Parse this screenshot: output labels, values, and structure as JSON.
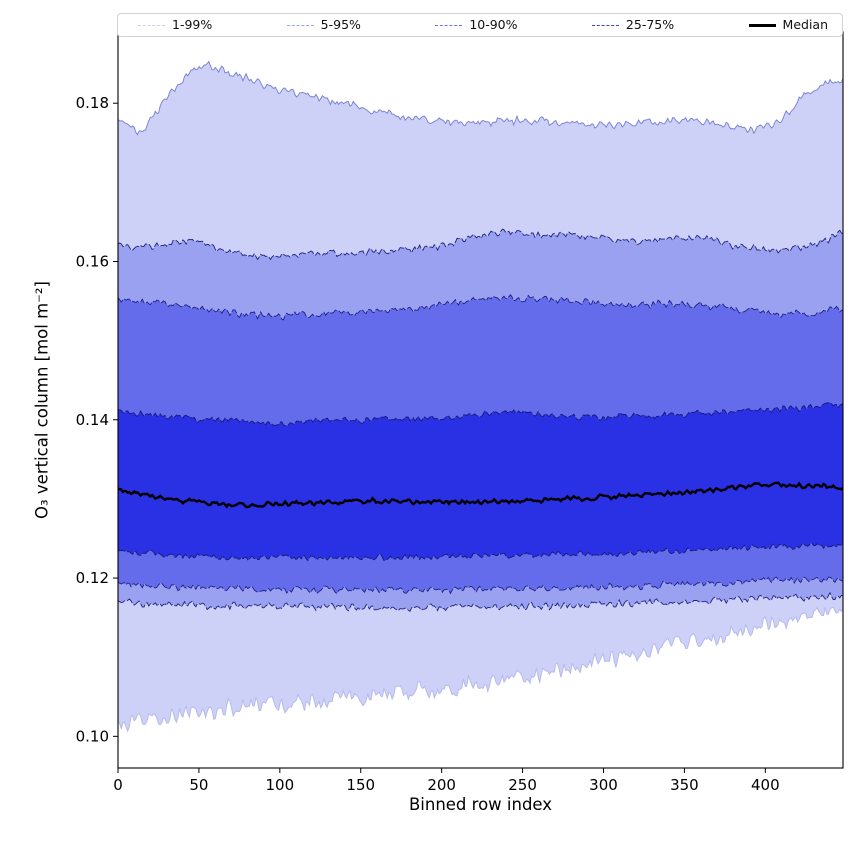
{
  "figure": {
    "background": "#ffffff"
  },
  "chart_data": {
    "type": "area",
    "title": "",
    "xlabel": "Binned row index",
    "ylabel": "O₃ vertical column [mol m⁻²]",
    "xlim": [
      0,
      448
    ],
    "ylim": [
      0.096,
      0.189
    ],
    "grid": false,
    "legend_position": "top-expand",
    "xticks": [
      0,
      50,
      100,
      150,
      200,
      250,
      300,
      350,
      400
    ],
    "xtick_labels": [
      "0",
      "50",
      "100",
      "150",
      "200",
      "250",
      "300",
      "350",
      "400"
    ],
    "yticks": [
      0.1,
      0.12,
      0.14,
      0.16,
      0.18
    ],
    "ytick_labels": [
      "0.10",
      "0.12",
      "0.14",
      "0.16",
      "0.18"
    ],
    "n_points": 448,
    "control_x": [
      0,
      8,
      15,
      25,
      35,
      45,
      55,
      70,
      85,
      100,
      115,
      130,
      145,
      160,
      180,
      200,
      220,
      240,
      260,
      280,
      300,
      320,
      340,
      360,
      380,
      395,
      410,
      425,
      435,
      447
    ],
    "series": {
      "p1": [
        0.1012,
        0.1015,
        0.1018,
        0.1022,
        0.1028,
        0.103,
        0.1032,
        0.1035,
        0.1038,
        0.104,
        0.1043,
        0.1045,
        0.1048,
        0.1052,
        0.1056,
        0.106,
        0.1066,
        0.1072,
        0.1078,
        0.1084,
        0.1095,
        0.1105,
        0.1115,
        0.1122,
        0.113,
        0.1138,
        0.1145,
        0.1152,
        0.1156,
        0.1158
      ],
      "p5": [
        0.117,
        0.1169,
        0.1168,
        0.1167,
        0.1166,
        0.1166,
        0.1165,
        0.1165,
        0.1164,
        0.1164,
        0.1164,
        0.1164,
        0.1163,
        0.1163,
        0.1163,
        0.1163,
        0.1164,
        0.1164,
        0.1165,
        0.1166,
        0.1167,
        0.1168,
        0.117,
        0.1171,
        0.1173,
        0.1174,
        0.1175,
        0.1176,
        0.1177,
        0.1178
      ],
      "p10": [
        0.1194,
        0.1192,
        0.1191,
        0.119,
        0.1189,
        0.1188,
        0.1188,
        0.1187,
        0.1186,
        0.1186,
        0.1186,
        0.1185,
        0.1185,
        0.1185,
        0.1185,
        0.1185,
        0.1186,
        0.1186,
        0.1187,
        0.1188,
        0.1189,
        0.119,
        0.1192,
        0.1193,
        0.1195,
        0.1196,
        0.1197,
        0.1198,
        0.1198,
        0.1199
      ],
      "p25": [
        0.1236,
        0.1234,
        0.1232,
        0.123,
        0.1229,
        0.1228,
        0.1227,
        0.1226,
        0.1226,
        0.1226,
        0.1226,
        0.1226,
        0.1226,
        0.1226,
        0.1226,
        0.1227,
        0.1228,
        0.1229,
        0.1229,
        0.123,
        0.1231,
        0.1232,
        0.1234,
        0.1236,
        0.1238,
        0.1239,
        0.124,
        0.1241,
        0.1242,
        0.1242
      ],
      "median": [
        0.1312,
        0.1308,
        0.1305,
        0.1302,
        0.1299,
        0.1297,
        0.1295,
        0.1293,
        0.1292,
        0.1294,
        0.1295,
        0.1295,
        0.1297,
        0.1298,
        0.1296,
        0.1297,
        0.1296,
        0.1297,
        0.1298,
        0.13,
        0.1302,
        0.1304,
        0.1307,
        0.131,
        0.1314,
        0.1317,
        0.1318,
        0.1317,
        0.1316,
        0.1314
      ],
      "p75": [
        0.1413,
        0.141,
        0.1408,
        0.1405,
        0.1403,
        0.1401,
        0.14,
        0.1399,
        0.1397,
        0.1396,
        0.1397,
        0.1399,
        0.14,
        0.14,
        0.14,
        0.1403,
        0.1407,
        0.141,
        0.1407,
        0.1405,
        0.1403,
        0.1405,
        0.1406,
        0.1408,
        0.141,
        0.1412,
        0.1413,
        0.1415,
        0.1417,
        0.142
      ],
      "p90": [
        0.1553,
        0.155,
        0.1548,
        0.1548,
        0.1546,
        0.1543,
        0.154,
        0.1536,
        0.1532,
        0.153,
        0.1532,
        0.1535,
        0.1535,
        0.1537,
        0.154,
        0.1545,
        0.1552,
        0.1555,
        0.1553,
        0.155,
        0.1546,
        0.1546,
        0.1546,
        0.1545,
        0.154,
        0.1536,
        0.1533,
        0.1535,
        0.1538,
        0.154
      ],
      "p95": [
        0.162,
        0.1618,
        0.1617,
        0.162,
        0.1624,
        0.1626,
        0.162,
        0.1612,
        0.1607,
        0.1605,
        0.1608,
        0.161,
        0.161,
        0.1612,
        0.1615,
        0.162,
        0.1632,
        0.1638,
        0.1633,
        0.1635,
        0.163,
        0.1625,
        0.1628,
        0.163,
        0.162,
        0.1616,
        0.1613,
        0.1618,
        0.1625,
        0.1636
      ],
      "p99": [
        0.1778,
        0.1768,
        0.1763,
        0.179,
        0.182,
        0.1843,
        0.1848,
        0.1838,
        0.1828,
        0.1818,
        0.181,
        0.1803,
        0.1797,
        0.179,
        0.1781,
        0.1777,
        0.1776,
        0.1778,
        0.1778,
        0.1776,
        0.1773,
        0.1773,
        0.1776,
        0.1778,
        0.177,
        0.1766,
        0.178,
        0.1812,
        0.1824,
        0.1828
      ]
    },
    "jitter": {
      "p1": 0.001,
      "p5": 0.0004,
      "p10": 0.0004,
      "p25": 0.00035,
      "median": 0.00028,
      "p75": 0.00035,
      "p90": 0.0004,
      "p95": 0.0004,
      "p99": 0.0005
    },
    "bands": [
      {
        "label": "1-99%",
        "lower": "p1",
        "upper": "p99",
        "fill": "#cdd1f8"
      },
      {
        "label": "5-95%",
        "lower": "p5",
        "upper": "p95",
        "fill": "#9aa1f1"
      },
      {
        "label": "10-90%",
        "lower": "p10",
        "upper": "p90",
        "fill": "#646ceb"
      },
      {
        "label": "25-75%",
        "lower": "p25",
        "upper": "p75",
        "fill": "#2a30e3"
      }
    ],
    "edges": [
      {
        "series": "p1",
        "color": "#b6baea",
        "width": 1.0,
        "dash": ""
      },
      {
        "series": "p99",
        "color": "#7d85d2",
        "width": 1.0,
        "dash": ""
      },
      {
        "series": "p5",
        "color": "#1c2280",
        "width": 0.9,
        "dash": "8 2"
      },
      {
        "series": "p95",
        "color": "#1c2280",
        "width": 0.9,
        "dash": "8 2"
      },
      {
        "series": "p10",
        "color": "#1c2280",
        "width": 0.9,
        "dash": "8 2"
      },
      {
        "series": "p90",
        "color": "#1c2280",
        "width": 0.9,
        "dash": "8 2"
      },
      {
        "series": "p25",
        "color": "#151a70",
        "width": 0.9,
        "dash": "8 2"
      },
      {
        "series": "p75",
        "color": "#151a70",
        "width": 0.9,
        "dash": "8 2"
      }
    ],
    "median": {
      "series": "median",
      "color": "#000000",
      "width": 2.4,
      "label": "Median"
    },
    "legend": [
      {
        "label": "1-99%",
        "color": "#c9cdf4",
        "style": "dashed",
        "width": 1
      },
      {
        "label": "5-95%",
        "color": "#9aa1ee",
        "style": "dashed",
        "width": 1
      },
      {
        "label": "10-90%",
        "color": "#6a73e8",
        "style": "dashed",
        "width": 1
      },
      {
        "label": "25-75%",
        "color": "#3a42e0",
        "style": "dashed",
        "width": 1
      },
      {
        "label": "Median",
        "color": "#000000",
        "style": "solid",
        "width": 3
      }
    ]
  }
}
